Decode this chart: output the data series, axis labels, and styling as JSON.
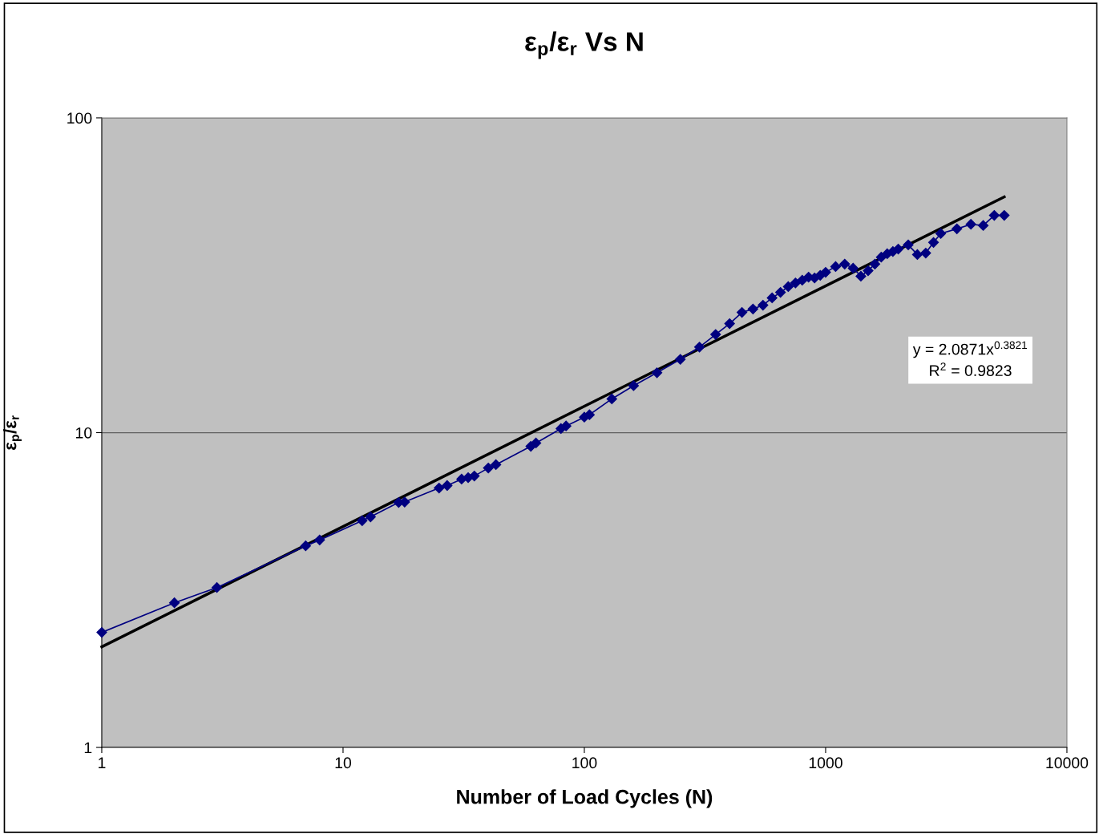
{
  "chart_data": {
    "type": "line",
    "title": "ε$_{p}$/ε$_{r}$ Vs N",
    "xlabel": "Number of Load Cycles (N)",
    "ylabel": "ε$_{p}$/ε$_{r}$",
    "log": "xy",
    "grid": "y",
    "marker": "diamond",
    "line_style": "solid",
    "xlim": [
      1,
      10000
    ],
    "xticks": [
      1,
      10,
      100,
      1000,
      10000
    ],
    "ylim": [
      1,
      100
    ],
    "yticks": [
      1,
      10,
      100
    ],
    "series": [
      {
        "color": "#000080",
        "x": [
          1,
          2,
          3,
          7,
          8,
          12,
          13,
          17,
          18,
          25,
          27,
          31,
          33,
          35,
          40,
          43,
          60,
          63,
          80,
          84,
          100,
          105,
          130,
          160,
          200,
          250,
          300,
          350,
          400,
          450,
          500,
          550,
          600,
          650,
          700,
          750,
          800,
          850,
          900,
          950,
          1000,
          1100,
          1200,
          1300,
          1400,
          1500,
          1600,
          1700,
          1800,
          1900,
          2000,
          2200,
          2400,
          2600,
          2800,
          3000,
          3500,
          4000,
          4500,
          5000,
          5500
        ],
        "values": [
          2.32,
          2.88,
          3.22,
          4.37,
          4.56,
          5.25,
          5.4,
          6.0,
          6.02,
          6.67,
          6.79,
          7.12,
          7.2,
          7.28,
          7.72,
          7.91,
          9.05,
          9.27,
          10.3,
          10.5,
          11.2,
          11.4,
          12.8,
          14.1,
          15.5,
          17.1,
          18.7,
          20.5,
          22.2,
          24.1,
          24.7,
          25.4,
          26.8,
          27.9,
          29.1,
          29.9,
          30.5,
          31.2,
          31.0,
          31.6,
          32.3,
          33.7,
          34.3,
          33.3,
          31.4,
          32.7,
          34.3,
          36.1,
          37.0,
          37.6,
          38.3,
          39.5,
          36.8,
          37.2,
          40.2,
          42.9,
          44.4,
          45.9,
          45.5,
          49.0,
          49.0
        ]
      },
      {
        "type": "line",
        "color": "#000000",
        "marker": "none",
        "x": [
          1,
          5500
        ],
        "values": [
          2.0871,
          56.1
        ]
      }
    ],
    "annotations": [
      "y = 2.0871x$^{0.3821}$\nR$^{2}$ = 0.9823"
    ]
  }
}
